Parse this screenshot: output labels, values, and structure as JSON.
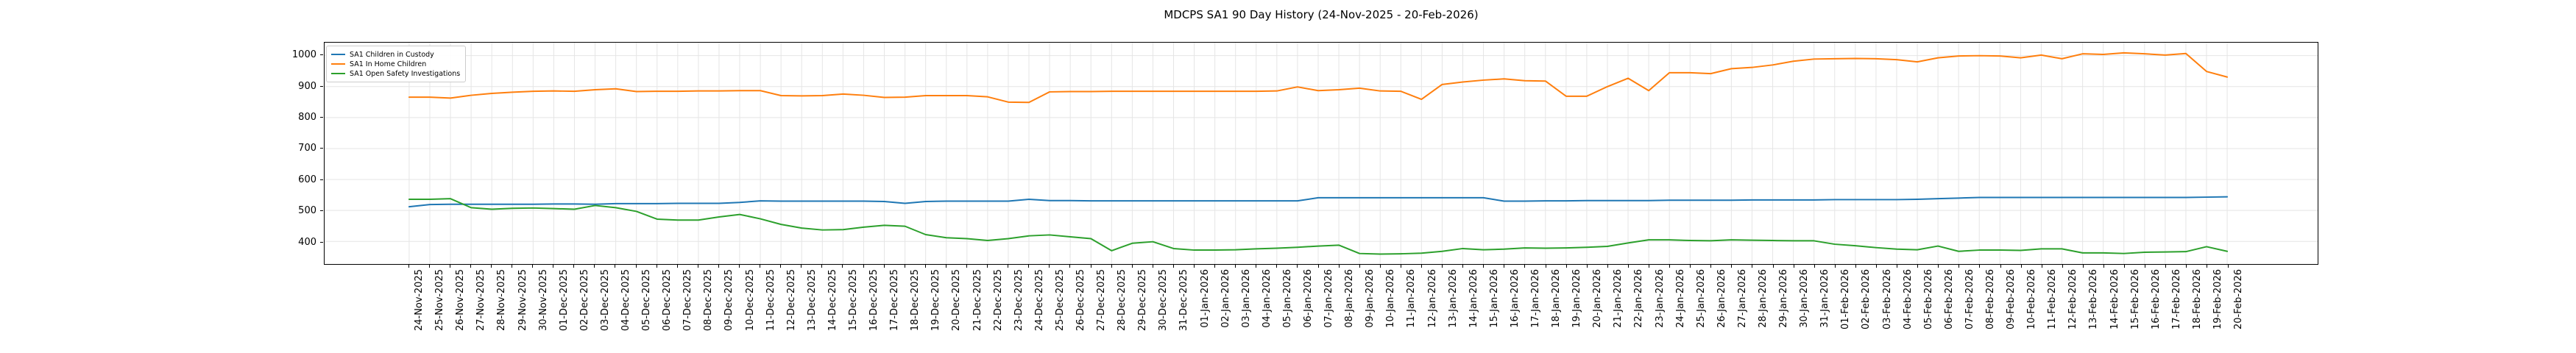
{
  "figure": {
    "title": "MDCPS SA1 90 Day History (24-Nov-2025 - 20-Feb-2026)",
    "background": "#ffffff"
  },
  "chart_data": {
    "type": "line",
    "title": "MDCPS SA1 90 Day History (24-Nov-2025 - 20-Feb-2026)",
    "xlabel": "",
    "ylabel": "",
    "grid": true,
    "grid_color": "#e5e5e5",
    "spine_color": "#000000",
    "legend_position": "upper-left",
    "ylim": [
      327,
      1042
    ],
    "yticks": [
      400,
      500,
      600,
      700,
      800,
      900,
      1000
    ],
    "x_tick_labels": [
      "24-Nov-2025",
      "25-Nov-2025",
      "26-Nov-2025",
      "27-Nov-2025",
      "28-Nov-2025",
      "29-Nov-2025",
      "30-Nov-2025",
      "01-Dec-2025",
      "02-Dec-2025",
      "03-Dec-2025",
      "04-Dec-2025",
      "05-Dec-2025",
      "06-Dec-2025",
      "07-Dec-2025",
      "08-Dec-2025",
      "09-Dec-2025",
      "10-Dec-2025",
      "11-Dec-2025",
      "12-Dec-2025",
      "13-Dec-2025",
      "14-Dec-2025",
      "15-Dec-2025",
      "16-Dec-2025",
      "17-Dec-2025",
      "18-Dec-2025",
      "19-Dec-2025",
      "20-Dec-2025",
      "21-Dec-2025",
      "22-Dec-2025",
      "23-Dec-2025",
      "24-Dec-2025",
      "25-Dec-2025",
      "26-Dec-2025",
      "27-Dec-2025",
      "28-Dec-2025",
      "29-Dec-2025",
      "30-Dec-2025",
      "31-Dec-2025",
      "01-Jan-2026",
      "02-Jan-2026",
      "03-Jan-2026",
      "04-Jan-2026",
      "05-Jan-2026",
      "06-Jan-2026",
      "07-Jan-2026",
      "08-Jan-2026",
      "09-Jan-2026",
      "10-Jan-2026",
      "11-Jan-2026",
      "12-Jan-2026",
      "13-Jan-2026",
      "14-Jan-2026",
      "15-Jan-2026",
      "16-Jan-2026",
      "17-Jan-2026",
      "18-Jan-2026",
      "19-Jan-2026",
      "20-Jan-2026",
      "21-Jan-2026",
      "22-Jan-2026",
      "23-Jan-2026",
      "24-Jan-2026",
      "25-Jan-2026",
      "26-Jan-2026",
      "27-Jan-2026",
      "28-Jan-2026",
      "29-Jan-2026",
      "30-Jan-2026",
      "31-Jan-2026",
      "01-Feb-2026",
      "02-Feb-2026",
      "03-Feb-2026",
      "04-Feb-2026",
      "05-Feb-2026",
      "06-Feb-2026",
      "07-Feb-2026",
      "08-Feb-2026",
      "09-Feb-2026",
      "10-Feb-2026",
      "11-Feb-2026",
      "12-Feb-2026",
      "13-Feb-2026",
      "14-Feb-2026",
      "15-Feb-2026",
      "16-Feb-2026",
      "17-Feb-2026",
      "18-Feb-2026",
      "19-Feb-2026",
      "20-Feb-2026"
    ],
    "series": [
      {
        "name": "SA1 Children in Custody",
        "color": "#1f77b4",
        "values": [
          512,
          519,
          520,
          520,
          520,
          520,
          520,
          521,
          521,
          520,
          522,
          522,
          522,
          523,
          523,
          523,
          526,
          531,
          530,
          530,
          530,
          530,
          530,
          529,
          523,
          529,
          530,
          530,
          530,
          530,
          536,
          532,
          532,
          531,
          531,
          531,
          531,
          531,
          531,
          531,
          531,
          531,
          531,
          531,
          541,
          541,
          541,
          541,
          541,
          541,
          541,
          541,
          541,
          530,
          530,
          531,
          531,
          532,
          532,
          532,
          532,
          533,
          533,
          533,
          533,
          534,
          534,
          534,
          534,
          535,
          535,
          535,
          535,
          536,
          538,
          540,
          542,
          542,
          542,
          542,
          542,
          542,
          542,
          542,
          542,
          542,
          542,
          543,
          544
        ]
      },
      {
        "name": "SA1 In Home Children",
        "color": "#ff7f0e",
        "values": [
          866,
          866,
          863,
          872,
          878,
          882,
          885,
          886,
          885,
          890,
          893,
          884,
          885,
          885,
          886,
          886,
          887,
          887,
          871,
          870,
          871,
          876,
          872,
          865,
          866,
          871,
          871,
          871,
          867,
          850,
          849,
          883,
          884,
          884,
          885,
          885,
          885,
          885,
          885,
          885,
          885,
          885,
          886,
          899,
          887,
          890,
          895,
          886,
          885,
          859,
          907,
          915,
          921,
          925,
          919,
          918,
          869,
          869,
          900,
          927,
          887,
          945,
          945,
          942,
          958,
          962,
          970,
          982,
          989,
          990,
          991,
          990,
          987,
          980,
          993,
          999,
          1000,
          999,
          993,
          1002,
          990,
          1006,
          1004,
          1009,
          1006,
          1002,
          1007,
          949,
          931
        ]
      },
      {
        "name": "SA1 Open Safety Investigations",
        "color": "#2ca02c",
        "values": [
          536,
          536,
          538,
          509,
          504,
          507,
          508,
          506,
          504,
          516,
          509,
          497,
          472,
          469,
          469,
          479,
          487,
          473,
          455,
          443,
          437,
          438,
          446,
          452,
          449,
          422,
          412,
          409,
          403,
          409,
          418,
          421,
          415,
          409,
          370,
          394,
          399,
          377,
          372,
          372,
          373,
          376,
          378,
          381,
          385,
          388,
          361,
          359,
          360,
          362,
          368,
          377,
          373,
          375,
          379,
          378,
          379,
          381,
          384,
          395,
          405,
          405,
          403,
          402,
          405,
          404,
          403,
          402,
          402,
          391,
          386,
          380,
          375,
          373,
          385,
          368,
          372,
          372,
          371,
          376,
          376,
          363,
          363,
          361,
          365,
          366,
          367,
          383,
          368
        ]
      }
    ]
  }
}
